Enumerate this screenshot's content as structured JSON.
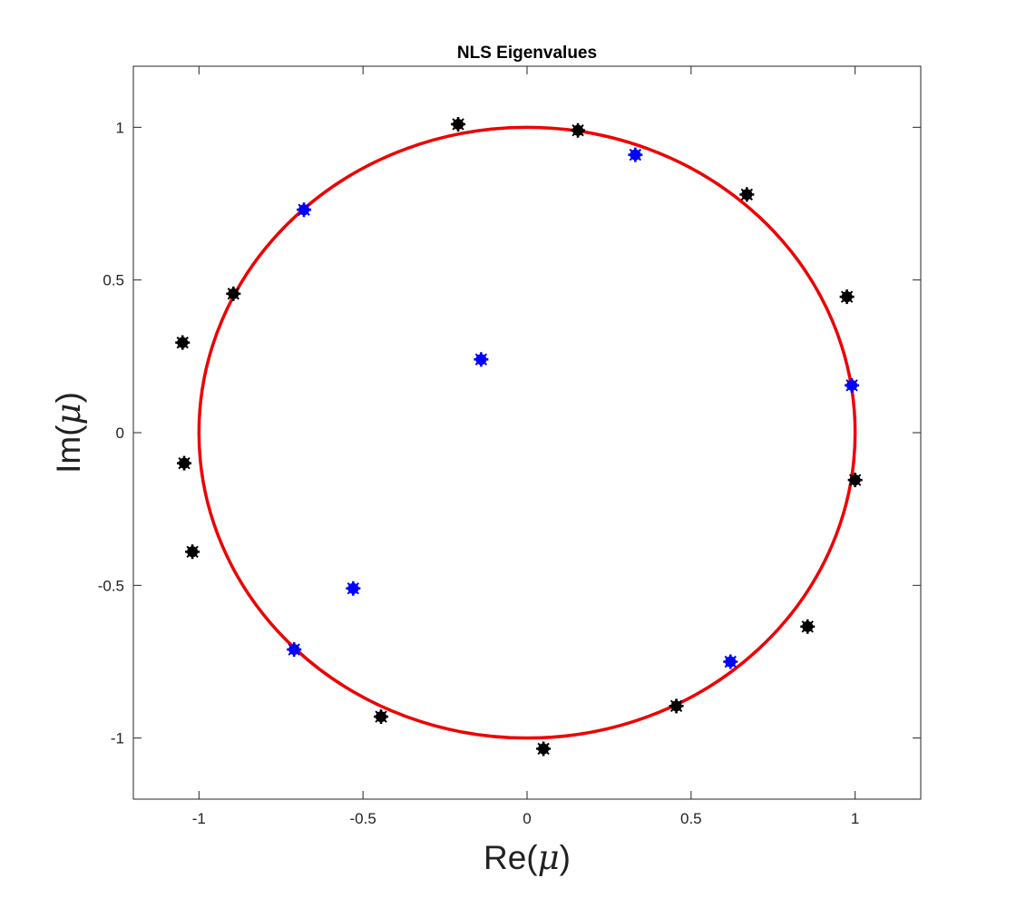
{
  "chart_data": {
    "type": "scatter",
    "title": "NLS Eigenvalues",
    "xlabel_prefix": "Re(",
    "ylabel_prefix": "Im(",
    "label_symbol": "μ",
    "label_suffix": ")",
    "xlim": [
      -1.2,
      1.2
    ],
    "ylim": [
      -1.2,
      1.2
    ],
    "xticks": [
      -1,
      -0.5,
      0,
      0.5,
      1
    ],
    "yticks": [
      -1,
      -0.5,
      0,
      0.5,
      1
    ],
    "xtick_labels": [
      "-1",
      "-0.5",
      "0",
      "0.5",
      "1"
    ],
    "ytick_labels": [
      "-1",
      "-0.5",
      "0",
      "0.5",
      "1"
    ],
    "grid": false,
    "unit_circle": {
      "center": [
        0,
        0
      ],
      "radius": 1,
      "color": "#ee0000"
    },
    "series": [
      {
        "color": "#000000",
        "points": [
          [
            -0.21,
            1.01
          ],
          [
            0.155,
            0.99
          ],
          [
            0.67,
            0.78
          ],
          [
            0.975,
            0.445
          ],
          [
            1.0,
            -0.155
          ],
          [
            0.855,
            -0.635
          ],
          [
            0.455,
            -0.895
          ],
          [
            0.05,
            -1.035
          ],
          [
            -0.445,
            -0.93
          ],
          [
            -1.02,
            -0.39
          ],
          [
            -1.045,
            -0.1
          ],
          [
            -1.05,
            0.295
          ],
          [
            -0.895,
            0.455
          ]
        ]
      },
      {
        "color": "#0000ff",
        "points": [
          [
            0.33,
            0.91
          ],
          [
            0.99,
            0.155
          ],
          [
            0.62,
            -0.75
          ],
          [
            -0.71,
            -0.71
          ],
          [
            -0.53,
            -0.51
          ],
          [
            -0.14,
            0.24
          ],
          [
            -0.68,
            0.73
          ]
        ]
      }
    ]
  }
}
